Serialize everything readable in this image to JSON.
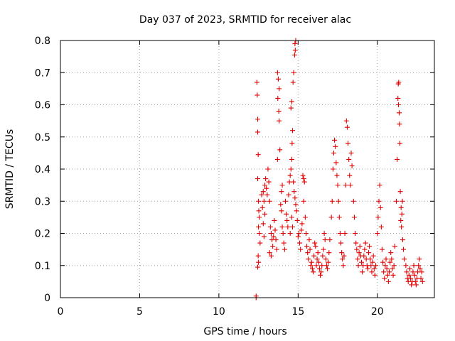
{
  "chart_data": {
    "type": "scatter",
    "title": "Day 037 of 2023, SRMTID for receiver alac",
    "xlabel": "GPS time / hours",
    "ylabel": "SRMTID / TECUs",
    "xlim": [
      0,
      23.6
    ],
    "ylim": [
      0,
      0.8
    ],
    "grid": true,
    "x_ticks": [
      {
        "value": 0,
        "label": "0"
      },
      {
        "value": 5,
        "label": "5"
      },
      {
        "value": 10,
        "label": "10"
      },
      {
        "value": 15,
        "label": "15"
      },
      {
        "value": 20,
        "label": "20"
      }
    ],
    "y_ticks": [
      {
        "value": 0,
        "label": "0"
      },
      {
        "value": 0.1,
        "label": "0.1"
      },
      {
        "value": 0.2,
        "label": "0.2"
      },
      {
        "value": 0.3,
        "label": "0.3"
      },
      {
        "value": 0.4,
        "label": "0.4"
      },
      {
        "value": 0.5,
        "label": "0.5"
      },
      {
        "value": 0.6,
        "label": "0.6"
      },
      {
        "value": 0.7,
        "label": "0.7"
      },
      {
        "value": 0.8,
        "label": "0.8"
      }
    ],
    "marker": "+",
    "series": [
      {
        "name": "SRMTID",
        "color": "#e00000",
        "points": [
          [
            12.35,
            0.0
          ],
          [
            12.35,
            0.005
          ],
          [
            12.4,
            0.67
          ],
          [
            12.42,
            0.63
          ],
          [
            12.45,
            0.555
          ],
          [
            12.45,
            0.515
          ],
          [
            12.48,
            0.445
          ],
          [
            12.45,
            0.37
          ],
          [
            12.5,
            0.3
          ],
          [
            12.52,
            0.27
          ],
          [
            12.55,
            0.25
          ],
          [
            12.5,
            0.22
          ],
          [
            12.55,
            0.2
          ],
          [
            12.6,
            0.17
          ],
          [
            12.48,
            0.13
          ],
          [
            12.5,
            0.11
          ],
          [
            12.45,
            0.095
          ],
          [
            12.7,
            0.32
          ],
          [
            12.75,
            0.28
          ],
          [
            12.8,
            0.33
          ],
          [
            12.85,
            0.3
          ],
          [
            12.9,
            0.35
          ],
          [
            12.95,
            0.37
          ],
          [
            13.0,
            0.34
          ],
          [
            13.05,
            0.32
          ],
          [
            12.8,
            0.23
          ],
          [
            12.85,
            0.19
          ],
          [
            12.9,
            0.26
          ],
          [
            13.1,
            0.4
          ],
          [
            13.15,
            0.36
          ],
          [
            13.2,
            0.3
          ],
          [
            13.25,
            0.22
          ],
          [
            13.3,
            0.2
          ],
          [
            13.35,
            0.18
          ],
          [
            13.4,
            0.16
          ],
          [
            13.45,
            0.19
          ],
          [
            13.5,
            0.24
          ],
          [
            13.55,
            0.21
          ],
          [
            13.6,
            0.18
          ],
          [
            13.65,
            0.15
          ],
          [
            13.2,
            0.14
          ],
          [
            13.3,
            0.13
          ],
          [
            13.7,
            0.7
          ],
          [
            13.75,
            0.68
          ],
          [
            13.8,
            0.65
          ],
          [
            13.72,
            0.62
          ],
          [
            13.78,
            0.58
          ],
          [
            13.8,
            0.55
          ],
          [
            13.85,
            0.46
          ],
          [
            13.7,
            0.43
          ],
          [
            13.9,
            0.29
          ],
          [
            13.95,
            0.27
          ],
          [
            14.0,
            0.22
          ],
          [
            14.05,
            0.2
          ],
          [
            14.1,
            0.17
          ],
          [
            14.15,
            0.15
          ],
          [
            13.95,
            0.33
          ],
          [
            14.0,
            0.35
          ],
          [
            14.2,
            0.3
          ],
          [
            14.25,
            0.26
          ],
          [
            14.3,
            0.24
          ],
          [
            14.35,
            0.22
          ],
          [
            14.4,
            0.32
          ],
          [
            14.45,
            0.36
          ],
          [
            14.5,
            0.38
          ],
          [
            14.55,
            0.4
          ],
          [
            14.6,
            0.43
          ],
          [
            14.62,
            0.48
          ],
          [
            14.65,
            0.52
          ],
          [
            14.55,
            0.59
          ],
          [
            14.6,
            0.61
          ],
          [
            14.68,
            0.67
          ],
          [
            14.72,
            0.7
          ],
          [
            14.78,
            0.755
          ],
          [
            14.8,
            0.79
          ],
          [
            14.85,
            0.8
          ],
          [
            14.82,
            0.77
          ],
          [
            14.7,
            0.36
          ],
          [
            14.75,
            0.33
          ],
          [
            14.8,
            0.31
          ],
          [
            14.85,
            0.29
          ],
          [
            14.9,
            0.27
          ],
          [
            14.95,
            0.24
          ],
          [
            14.6,
            0.25
          ],
          [
            14.65,
            0.22
          ],
          [
            14.5,
            0.2
          ],
          [
            15.0,
            0.19
          ],
          [
            15.05,
            0.2
          ],
          [
            15.1,
            0.17
          ],
          [
            15.15,
            0.15
          ],
          [
            15.2,
            0.21
          ],
          [
            15.25,
            0.23
          ],
          [
            15.3,
            0.38
          ],
          [
            15.35,
            0.37
          ],
          [
            15.4,
            0.36
          ],
          [
            15.35,
            0.3
          ],
          [
            15.45,
            0.25
          ],
          [
            15.5,
            0.2
          ],
          [
            15.55,
            0.16
          ],
          [
            15.6,
            0.14
          ],
          [
            15.65,
            0.12
          ],
          [
            15.7,
            0.18
          ],
          [
            15.75,
            0.15
          ],
          [
            15.8,
            0.1
          ],
          [
            15.85,
            0.11
          ],
          [
            15.9,
            0.09
          ],
          [
            15.95,
            0.08
          ],
          [
            16.0,
            0.13
          ],
          [
            16.05,
            0.17
          ],
          [
            16.1,
            0.16
          ],
          [
            16.15,
            0.1
          ],
          [
            16.2,
            0.12
          ],
          [
            16.25,
            0.14
          ],
          [
            16.3,
            0.11
          ],
          [
            16.35,
            0.09
          ],
          [
            16.4,
            0.07
          ],
          [
            16.45,
            0.08
          ],
          [
            16.5,
            0.1
          ],
          [
            16.55,
            0.13
          ],
          [
            16.6,
            0.15
          ],
          [
            16.65,
            0.2
          ],
          [
            16.7,
            0.18
          ],
          [
            16.75,
            0.12
          ],
          [
            16.8,
            0.1
          ],
          [
            16.85,
            0.09
          ],
          [
            16.9,
            0.11
          ],
          [
            16.95,
            0.14
          ],
          [
            17.0,
            0.18
          ],
          [
            17.1,
            0.25
          ],
          [
            17.15,
            0.3
          ],
          [
            17.2,
            0.4
          ],
          [
            17.25,
            0.45
          ],
          [
            17.3,
            0.49
          ],
          [
            17.35,
            0.47
          ],
          [
            17.4,
            0.42
          ],
          [
            17.45,
            0.38
          ],
          [
            17.5,
            0.35
          ],
          [
            17.55,
            0.3
          ],
          [
            17.6,
            0.25
          ],
          [
            17.65,
            0.2
          ],
          [
            17.7,
            0.17
          ],
          [
            17.75,
            0.14
          ],
          [
            17.8,
            0.12
          ],
          [
            17.85,
            0.1
          ],
          [
            17.9,
            0.13
          ],
          [
            17.95,
            0.2
          ],
          [
            18.0,
            0.35
          ],
          [
            18.05,
            0.55
          ],
          [
            18.1,
            0.53
          ],
          [
            18.15,
            0.48
          ],
          [
            18.2,
            0.43
          ],
          [
            18.25,
            0.38
          ],
          [
            18.3,
            0.35
          ],
          [
            18.35,
            0.45
          ],
          [
            18.4,
            0.41
          ],
          [
            18.5,
            0.3
          ],
          [
            18.55,
            0.25
          ],
          [
            18.6,
            0.2
          ],
          [
            18.65,
            0.17
          ],
          [
            18.7,
            0.15
          ],
          [
            18.75,
            0.12
          ],
          [
            18.8,
            0.1
          ],
          [
            18.85,
            0.14
          ],
          [
            18.9,
            0.16
          ],
          [
            18.95,
            0.13
          ],
          [
            19.0,
            0.11
          ],
          [
            19.05,
            0.08
          ],
          [
            19.1,
            0.1
          ],
          [
            19.15,
            0.13
          ],
          [
            19.2,
            0.15
          ],
          [
            19.25,
            0.17
          ],
          [
            19.3,
            0.12
          ],
          [
            19.35,
            0.1
          ],
          [
            19.4,
            0.09
          ],
          [
            19.45,
            0.14
          ],
          [
            19.5,
            0.16
          ],
          [
            19.55,
            0.12
          ],
          [
            19.6,
            0.1
          ],
          [
            19.65,
            0.08
          ],
          [
            19.7,
            0.11
          ],
          [
            19.75,
            0.13
          ],
          [
            19.8,
            0.09
          ],
          [
            19.85,
            0.07
          ],
          [
            19.9,
            0.1
          ],
          [
            20.0,
            0.2
          ],
          [
            20.05,
            0.25
          ],
          [
            20.1,
            0.3
          ],
          [
            20.15,
            0.35
          ],
          [
            20.2,
            0.28
          ],
          [
            20.25,
            0.22
          ],
          [
            20.3,
            0.15
          ],
          [
            20.35,
            0.11
          ],
          [
            20.4,
            0.08
          ],
          [
            20.45,
            0.06
          ],
          [
            20.5,
            0.1
          ],
          [
            20.55,
            0.12
          ],
          [
            20.6,
            0.09
          ],
          [
            20.65,
            0.07
          ],
          [
            20.7,
            0.05
          ],
          [
            20.75,
            0.08
          ],
          [
            20.8,
            0.11
          ],
          [
            20.85,
            0.14
          ],
          [
            20.9,
            0.12
          ],
          [
            20.95,
            0.09
          ],
          [
            21.0,
            0.07
          ],
          [
            21.05,
            0.1
          ],
          [
            21.1,
            0.16
          ],
          [
            21.2,
            0.3
          ],
          [
            21.25,
            0.43
          ],
          [
            21.3,
            0.62
          ],
          [
            21.32,
            0.665
          ],
          [
            21.35,
            0.67
          ],
          [
            21.33,
            0.6
          ],
          [
            21.38,
            0.575
          ],
          [
            21.4,
            0.54
          ],
          [
            21.42,
            0.48
          ],
          [
            21.45,
            0.33
          ],
          [
            21.5,
            0.28
          ],
          [
            21.55,
            0.26
          ],
          [
            21.48,
            0.24
          ],
          [
            21.52,
            0.22
          ],
          [
            21.58,
            0.3
          ],
          [
            21.6,
            0.18
          ],
          [
            21.65,
            0.15
          ],
          [
            21.7,
            0.12
          ],
          [
            21.8,
            0.1
          ],
          [
            21.85,
            0.08
          ],
          [
            21.9,
            0.06
          ],
          [
            21.95,
            0.05
          ],
          [
            22.0,
            0.07
          ],
          [
            22.05,
            0.09
          ],
          [
            22.1,
            0.06
          ],
          [
            22.15,
            0.04
          ],
          [
            22.2,
            0.05
          ],
          [
            22.25,
            0.08
          ],
          [
            22.3,
            0.1
          ],
          [
            22.35,
            0.07
          ],
          [
            22.4,
            0.05
          ],
          [
            22.45,
            0.04
          ],
          [
            22.5,
            0.06
          ],
          [
            22.55,
            0.08
          ],
          [
            22.6,
            0.1
          ],
          [
            22.65,
            0.12
          ],
          [
            22.7,
            0.09
          ],
          [
            22.75,
            0.06
          ],
          [
            22.8,
            0.08
          ],
          [
            22.85,
            0.05
          ]
        ]
      }
    ]
  }
}
